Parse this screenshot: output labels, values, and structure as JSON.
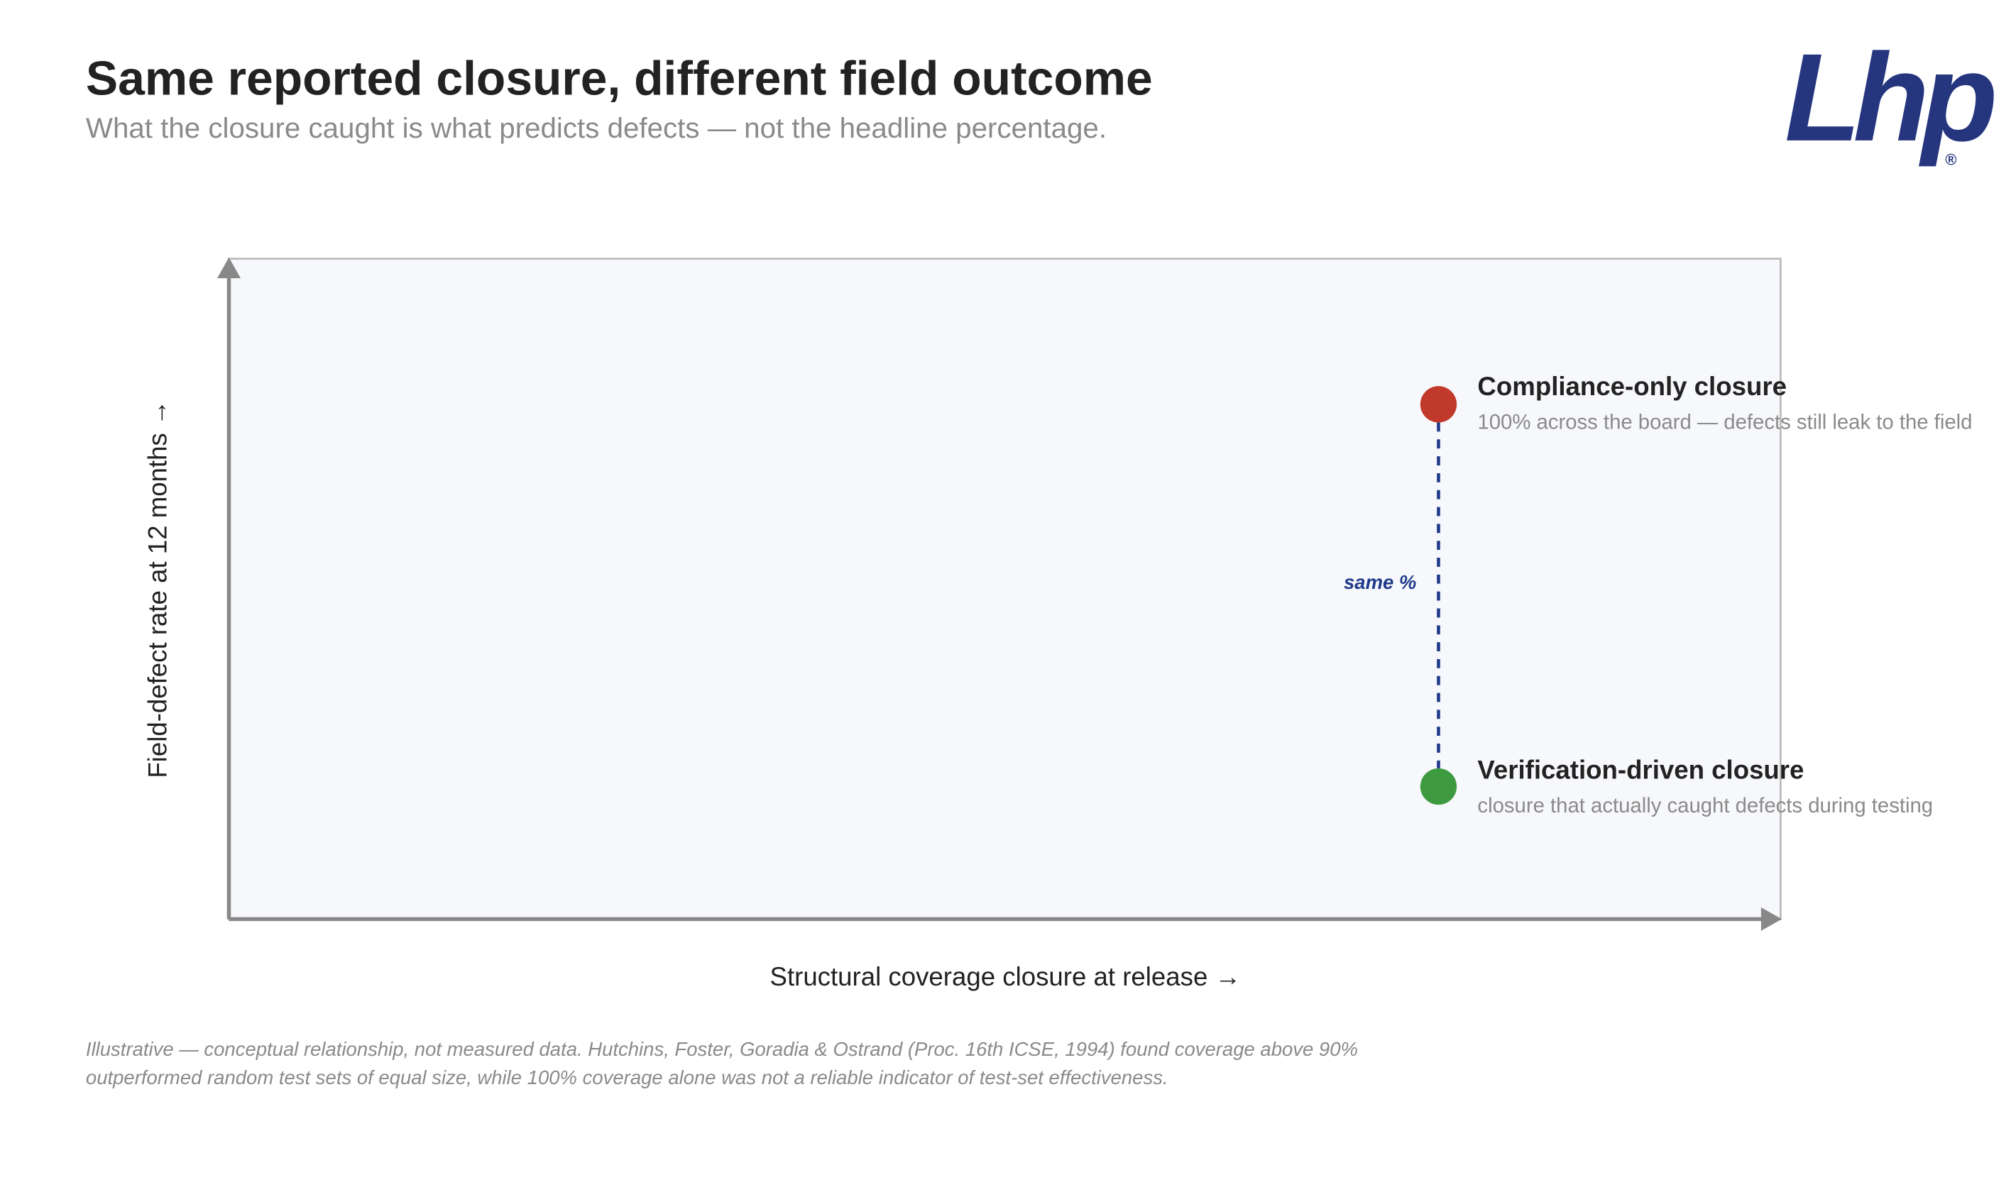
{
  "header": {
    "title": "Same reported closure, different field outcome",
    "subtitle": "What the closure caught is what predicts defects — not the headline percentage.",
    "logo": "Lhp",
    "logo_mark": "®"
  },
  "plot": {
    "y_label": "Field-defect rate at 12 months →",
    "x_label": "Structural coverage closure at release →",
    "points": [
      {
        "label": "Compliance-only closure",
        "note": "100% across the board — defects still leak to the field"
      },
      {
        "label": "Verification-driven closure",
        "note": "closure that actually caught defects during testing"
      }
    ],
    "gap_label": "same %"
  },
  "footnote": "Illustrative — conceptual relationship, not measured data. Hutchins, Foster, Goradia & Ostrand (Proc. 16th ICSE, 1994) found coverage above 90% outperformed random test sets of equal size, while 100% coverage alone was not a reliable indicator of test-set effectiveness."
}
